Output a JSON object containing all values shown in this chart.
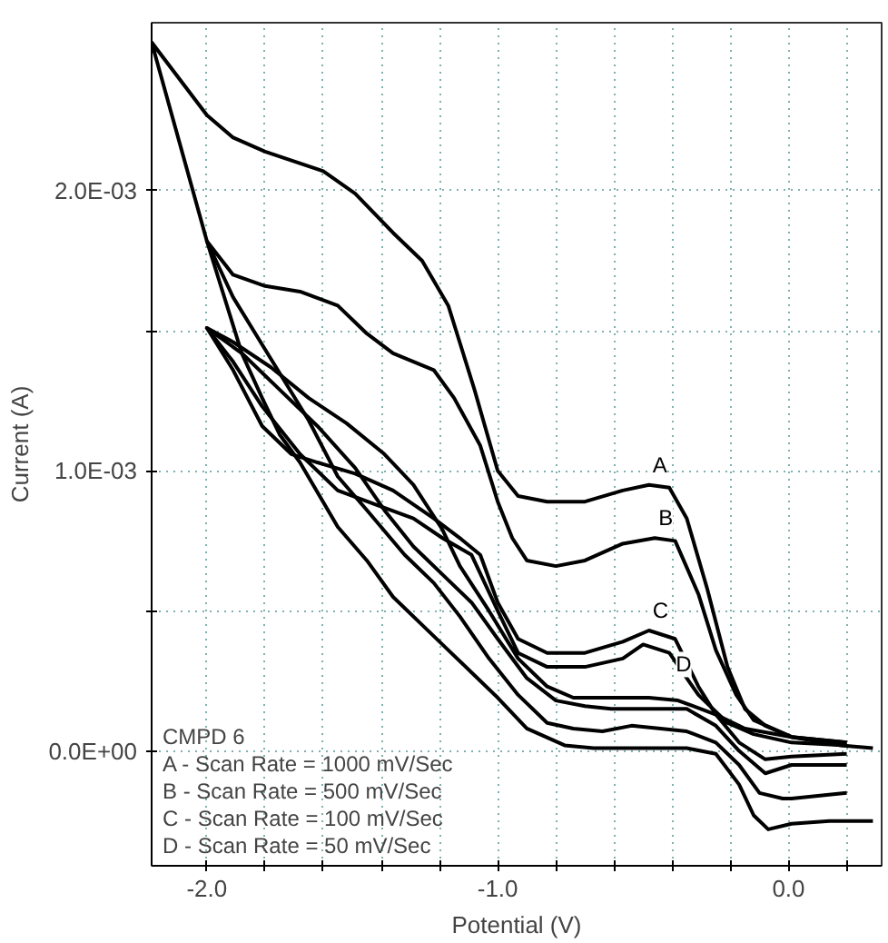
{
  "chart_data": {
    "type": "line",
    "xlabel": "Potential (V)",
    "ylabel": "Current (A)",
    "xlim": [
      -2.19,
      0.32
    ],
    "ylim": [
      -0.00041,
      0.0026
    ],
    "xticks": [
      {
        "value": -2.0,
        "label": "-2.0"
      },
      {
        "value": -1.8,
        "label": null
      },
      {
        "value": -1.6,
        "label": null
      },
      {
        "value": -1.4,
        "label": null
      },
      {
        "value": -1.2,
        "label": null
      },
      {
        "value": -1.0,
        "label": "-1.0"
      },
      {
        "value": -0.8,
        "label": null
      },
      {
        "value": -0.6,
        "label": null
      },
      {
        "value": -0.4,
        "label": null
      },
      {
        "value": -0.2,
        "label": null
      },
      {
        "value": 0.0,
        "label": "0.0"
      },
      {
        "value": 0.2,
        "label": null
      }
    ],
    "yticks": [
      {
        "value": 0.0,
        "label": "0.0E+00"
      },
      {
        "value": 0.0005,
        "label": null
      },
      {
        "value": 0.001,
        "label": "1.0E-03"
      },
      {
        "value": 0.0015,
        "label": null
      },
      {
        "value": 0.002,
        "label": "2.0E-03"
      }
    ],
    "grid": true,
    "marker": "none",
    "line_style": "solid",
    "series": [
      {
        "name": "A",
        "color": "#000000",
        "x": [
          0.29,
          0.18,
          0.01,
          -0.08,
          -0.15,
          -0.21,
          -0.28,
          -0.35,
          -0.41,
          -0.48,
          -0.57,
          -0.7,
          -0.83,
          -0.93,
          -1.0,
          -1.08,
          -1.17,
          -1.26,
          -1.36,
          -1.49,
          -1.6,
          -1.8,
          -1.91,
          -2.0,
          -2.19,
          -2.0,
          -1.88,
          -1.81,
          -1.75,
          -1.68,
          -1.55,
          -1.45,
          -1.36,
          -1.26,
          -1.17,
          -1.09,
          -1.0,
          -0.9,
          -0.77,
          -0.67,
          -0.57,
          -0.44,
          -0.35,
          -0.25,
          -0.17,
          -0.12,
          -0.07,
          0.01,
          0.14,
          0.29
        ],
        "values": [
          1e-05,
          2e-05,
          5e-05,
          9e-05,
          0.00015,
          0.0003,
          0.00058,
          0.00083,
          0.00094,
          0.00095,
          0.00093,
          0.00089,
          0.00089,
          0.00091,
          0.001,
          0.00129,
          0.00159,
          0.00175,
          0.00185,
          0.00199,
          0.00207,
          0.00214,
          0.00219,
          0.00227,
          0.00253,
          0.00182,
          0.00142,
          0.00126,
          0.00113,
          0.00103,
          0.0008,
          0.00068,
          0.00055,
          0.00045,
          0.00036,
          0.00028,
          0.00019,
          8e-05,
          2e-05,
          1e-05,
          1e-05,
          1e-05,
          1e-05,
          -1e-05,
          -0.00012,
          -0.00023,
          -0.00028,
          -0.00026,
          -0.00025,
          -0.00025
        ]
      },
      {
        "name": "B",
        "color": "#000000",
        "x": [
          0.2,
          0.01,
          -0.12,
          -0.18,
          -0.25,
          -0.31,
          -0.39,
          -0.46,
          -0.57,
          -0.7,
          -0.8,
          -0.9,
          -0.95,
          -1.0,
          -1.06,
          -1.15,
          -1.22,
          -1.36,
          -1.45,
          -1.55,
          -1.68,
          -1.8,
          -1.91,
          -2.0,
          -1.91,
          -1.78,
          -1.65,
          -1.55,
          -1.45,
          -1.32,
          -1.22,
          -1.13,
          -1.03,
          -0.93,
          -0.83,
          -0.74,
          -0.64,
          -0.54,
          -0.44,
          -0.35,
          -0.25,
          -0.17,
          -0.1,
          -0.02,
          0.01,
          0.2
        ],
        "values": [
          3e-05,
          5e-05,
          0.00011,
          0.0002,
          0.00036,
          0.00056,
          0.00075,
          0.00076,
          0.00074,
          0.00068,
          0.00066,
          0.00068,
          0.00076,
          0.00089,
          0.00109,
          0.00126,
          0.00136,
          0.00142,
          0.00149,
          0.00159,
          0.00164,
          0.00166,
          0.0017,
          0.00182,
          0.00162,
          0.0014,
          0.00118,
          0.00098,
          0.00086,
          0.0007,
          0.0006,
          0.00048,
          0.00033,
          0.0002,
          0.0001,
          8e-05,
          7e-05,
          9e-05,
          8e-05,
          7e-05,
          3e-05,
          -5e-05,
          -0.00015,
          -0.00017,
          -0.00017,
          -0.00015
        ]
      },
      {
        "name": "C",
        "color": "#000000",
        "x": [
          0.2,
          0.01,
          -0.15,
          -0.25,
          -0.31,
          -0.39,
          -0.48,
          -0.57,
          -0.7,
          -0.83,
          -0.93,
          -1.0,
          -1.06,
          -1.13,
          -1.22,
          -1.36,
          -1.49,
          -1.62,
          -1.71,
          -1.81,
          -1.91,
          -2.0,
          -1.88,
          -1.75,
          -1.62,
          -1.49,
          -1.39,
          -1.29,
          -1.19,
          -1.09,
          -1.0,
          -0.9,
          -0.8,
          -0.7,
          -0.61,
          -0.48,
          -0.35,
          -0.25,
          -0.17,
          -0.08,
          0.01,
          0.2
        ],
        "values": [
          3e-05,
          5e-05,
          8e-05,
          0.00013,
          0.00023,
          0.0004,
          0.00043,
          0.00039,
          0.00035,
          0.00035,
          0.0004,
          0.00053,
          0.0007,
          0.00076,
          0.00083,
          0.00093,
          0.00099,
          0.00103,
          0.00106,
          0.00116,
          0.00136,
          0.00151,
          0.00142,
          0.00129,
          0.00116,
          0.00101,
          0.00086,
          0.00073,
          0.00063,
          0.00053,
          0.0004,
          0.00026,
          0.00018,
          0.00016,
          0.00015,
          0.00015,
          0.00015,
          9e-05,
          0.0,
          -8e-05,
          -5e-05,
          -5e-05
        ]
      },
      {
        "name": "D",
        "color": "#000000",
        "x": [
          0.2,
          0.01,
          -0.12,
          -0.21,
          -0.31,
          -0.41,
          -0.5,
          -0.57,
          -0.7,
          -0.83,
          -0.93,
          -1.0,
          -1.09,
          -1.19,
          -1.29,
          -1.42,
          -1.55,
          -1.68,
          -1.81,
          -1.91,
          -2.0,
          -1.91,
          -1.78,
          -1.65,
          -1.52,
          -1.39,
          -1.29,
          -1.19,
          -1.13,
          -1.03,
          -0.93,
          -0.83,
          -0.74,
          -0.61,
          -0.48,
          -0.38,
          -0.25,
          -0.17,
          -0.08,
          0.01,
          0.2
        ],
        "values": [
          2e-05,
          3e-05,
          6e-05,
          0.0001,
          0.0002,
          0.00035,
          0.00038,
          0.00033,
          0.0003,
          0.0003,
          0.00035,
          0.0005,
          0.0007,
          0.00076,
          0.00083,
          0.00088,
          0.00093,
          0.00106,
          0.00123,
          0.00139,
          0.00151,
          0.00146,
          0.00137,
          0.00126,
          0.00117,
          0.00106,
          0.00095,
          0.00079,
          0.00066,
          0.0005,
          0.00033,
          0.00023,
          0.00019,
          0.00019,
          0.00019,
          0.00018,
          0.00013,
          3e-05,
          -3e-05,
          -2e-05,
          -1e-05
        ]
      }
    ],
    "annotations": [
      "CMPD 6",
      "A - Scan Rate = 1000 mV/Sec",
      "B - Scan Rate =   500 mV/Sec",
      "C - Scan Rate =   100 mV/Sec",
      "D - Scan Rate =     50 mV/Sec"
    ]
  }
}
